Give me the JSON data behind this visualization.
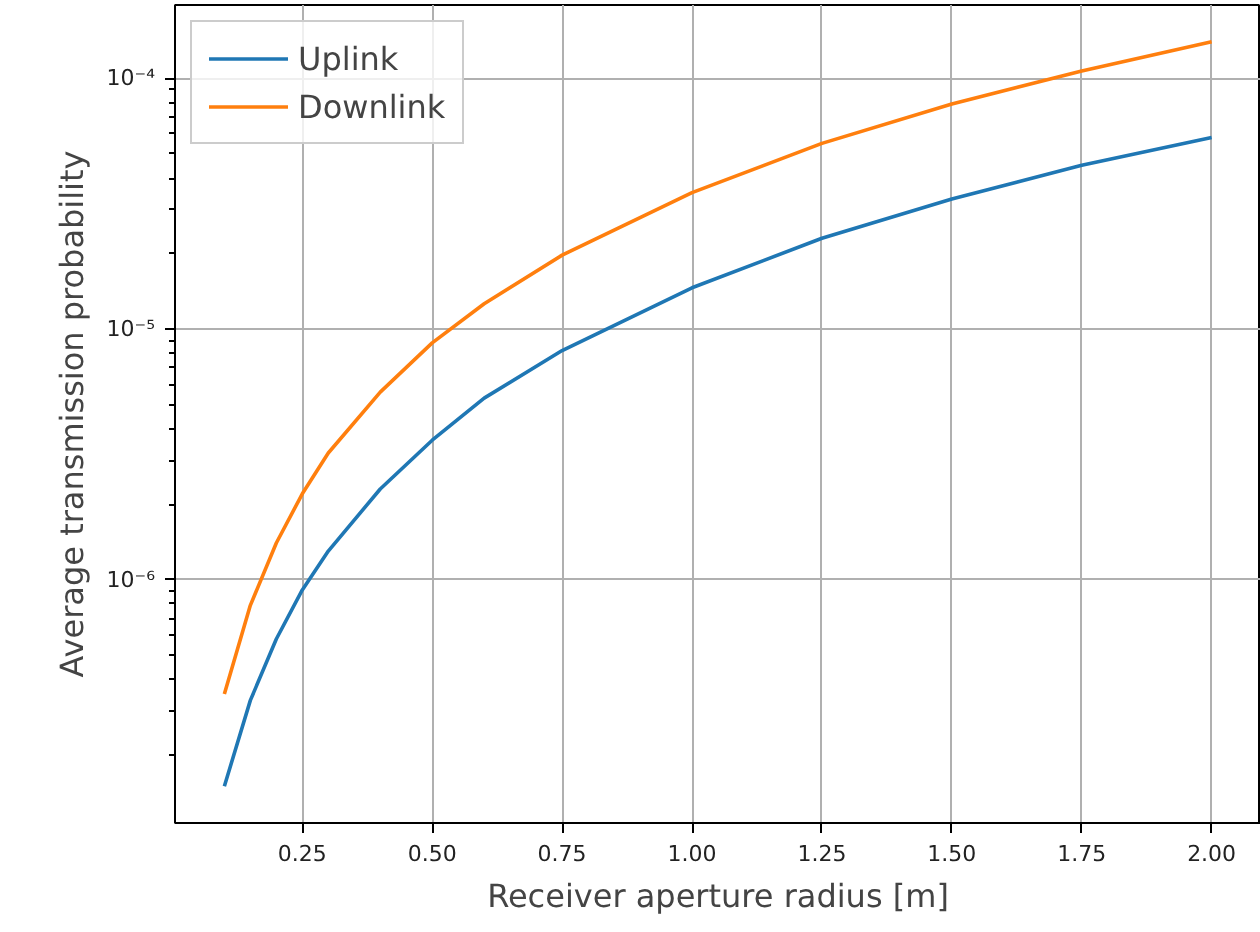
{
  "chart_data": {
    "type": "line",
    "xlabel": "Receiver aperture radius [m]",
    "ylabel": "Average transmission probability",
    "x": [
      0.1,
      0.15,
      0.2,
      0.25,
      0.3,
      0.4,
      0.5,
      0.6,
      0.75,
      1.0,
      1.25,
      1.5,
      1.75,
      2.0
    ],
    "series": [
      {
        "name": "Uplink",
        "color": "#1f77b4",
        "values": [
          1.5e-07,
          3.3e-07,
          5.8e-07,
          9.1e-07,
          1.3e-06,
          2.3e-06,
          3.6e-06,
          5.3e-06,
          8.2e-06,
          1.46e-05,
          2.3e-05,
          3.3e-05,
          4.5e-05,
          5.8e-05
        ]
      },
      {
        "name": "Downlink",
        "color": "#ff7f0e",
        "values": [
          3.5e-07,
          7.9e-07,
          1.4e-06,
          2.2e-06,
          3.2e-06,
          5.6e-06,
          8.8e-06,
          1.26e-05,
          1.97e-05,
          3.5e-05,
          5.5e-05,
          7.9e-05,
          0.000107,
          0.00014
        ]
      }
    ],
    "xlim": [
      0.005,
      2.095
    ],
    "xticks": [
      {
        "value": 0.25,
        "label": "0.25"
      },
      {
        "value": 0.5,
        "label": "0.50"
      },
      {
        "value": 0.75,
        "label": "0.75"
      },
      {
        "value": 1.0,
        "label": "1.00"
      },
      {
        "value": 1.25,
        "label": "1.25"
      },
      {
        "value": 1.5,
        "label": "1.50"
      },
      {
        "value": 1.75,
        "label": "1.75"
      },
      {
        "value": 2.0,
        "label": "2.00"
      }
    ],
    "ylim": [
      1.07e-07,
      0.000196
    ],
    "yticks": [
      {
        "value": 2e-07,
        "label": null
      },
      {
        "value": 3e-07,
        "label": null
      },
      {
        "value": 4e-07,
        "label": null
      },
      {
        "value": 5e-07,
        "label": null
      },
      {
        "value": 6e-07,
        "label": null
      },
      {
        "value": 7e-07,
        "label": null
      },
      {
        "value": 8e-07,
        "label": null
      },
      {
        "value": 9e-07,
        "label": null
      },
      {
        "value": 1e-06,
        "label": "10⁻⁶"
      },
      {
        "value": 2e-06,
        "label": null
      },
      {
        "value": 3e-06,
        "label": null
      },
      {
        "value": 4e-06,
        "label": null
      },
      {
        "value": 5e-06,
        "label": null
      },
      {
        "value": 6e-06,
        "label": null
      },
      {
        "value": 7e-06,
        "label": null
      },
      {
        "value": 8e-06,
        "label": null
      },
      {
        "value": 9e-06,
        "label": null
      },
      {
        "value": 1e-05,
        "label": "10⁻⁵"
      },
      {
        "value": 2e-05,
        "label": null
      },
      {
        "value": 3e-05,
        "label": null
      },
      {
        "value": 4e-05,
        "label": null
      },
      {
        "value": 5e-05,
        "label": null
      },
      {
        "value": 6e-05,
        "label": null
      },
      {
        "value": 7e-05,
        "label": null
      },
      {
        "value": 8e-05,
        "label": null
      },
      {
        "value": 9e-05,
        "label": null
      },
      {
        "value": 0.0001,
        "label": "10⁻⁴"
      }
    ],
    "log": "y",
    "grid": true,
    "legend": "top left",
    "line_style": "solid",
    "marker": "none"
  }
}
